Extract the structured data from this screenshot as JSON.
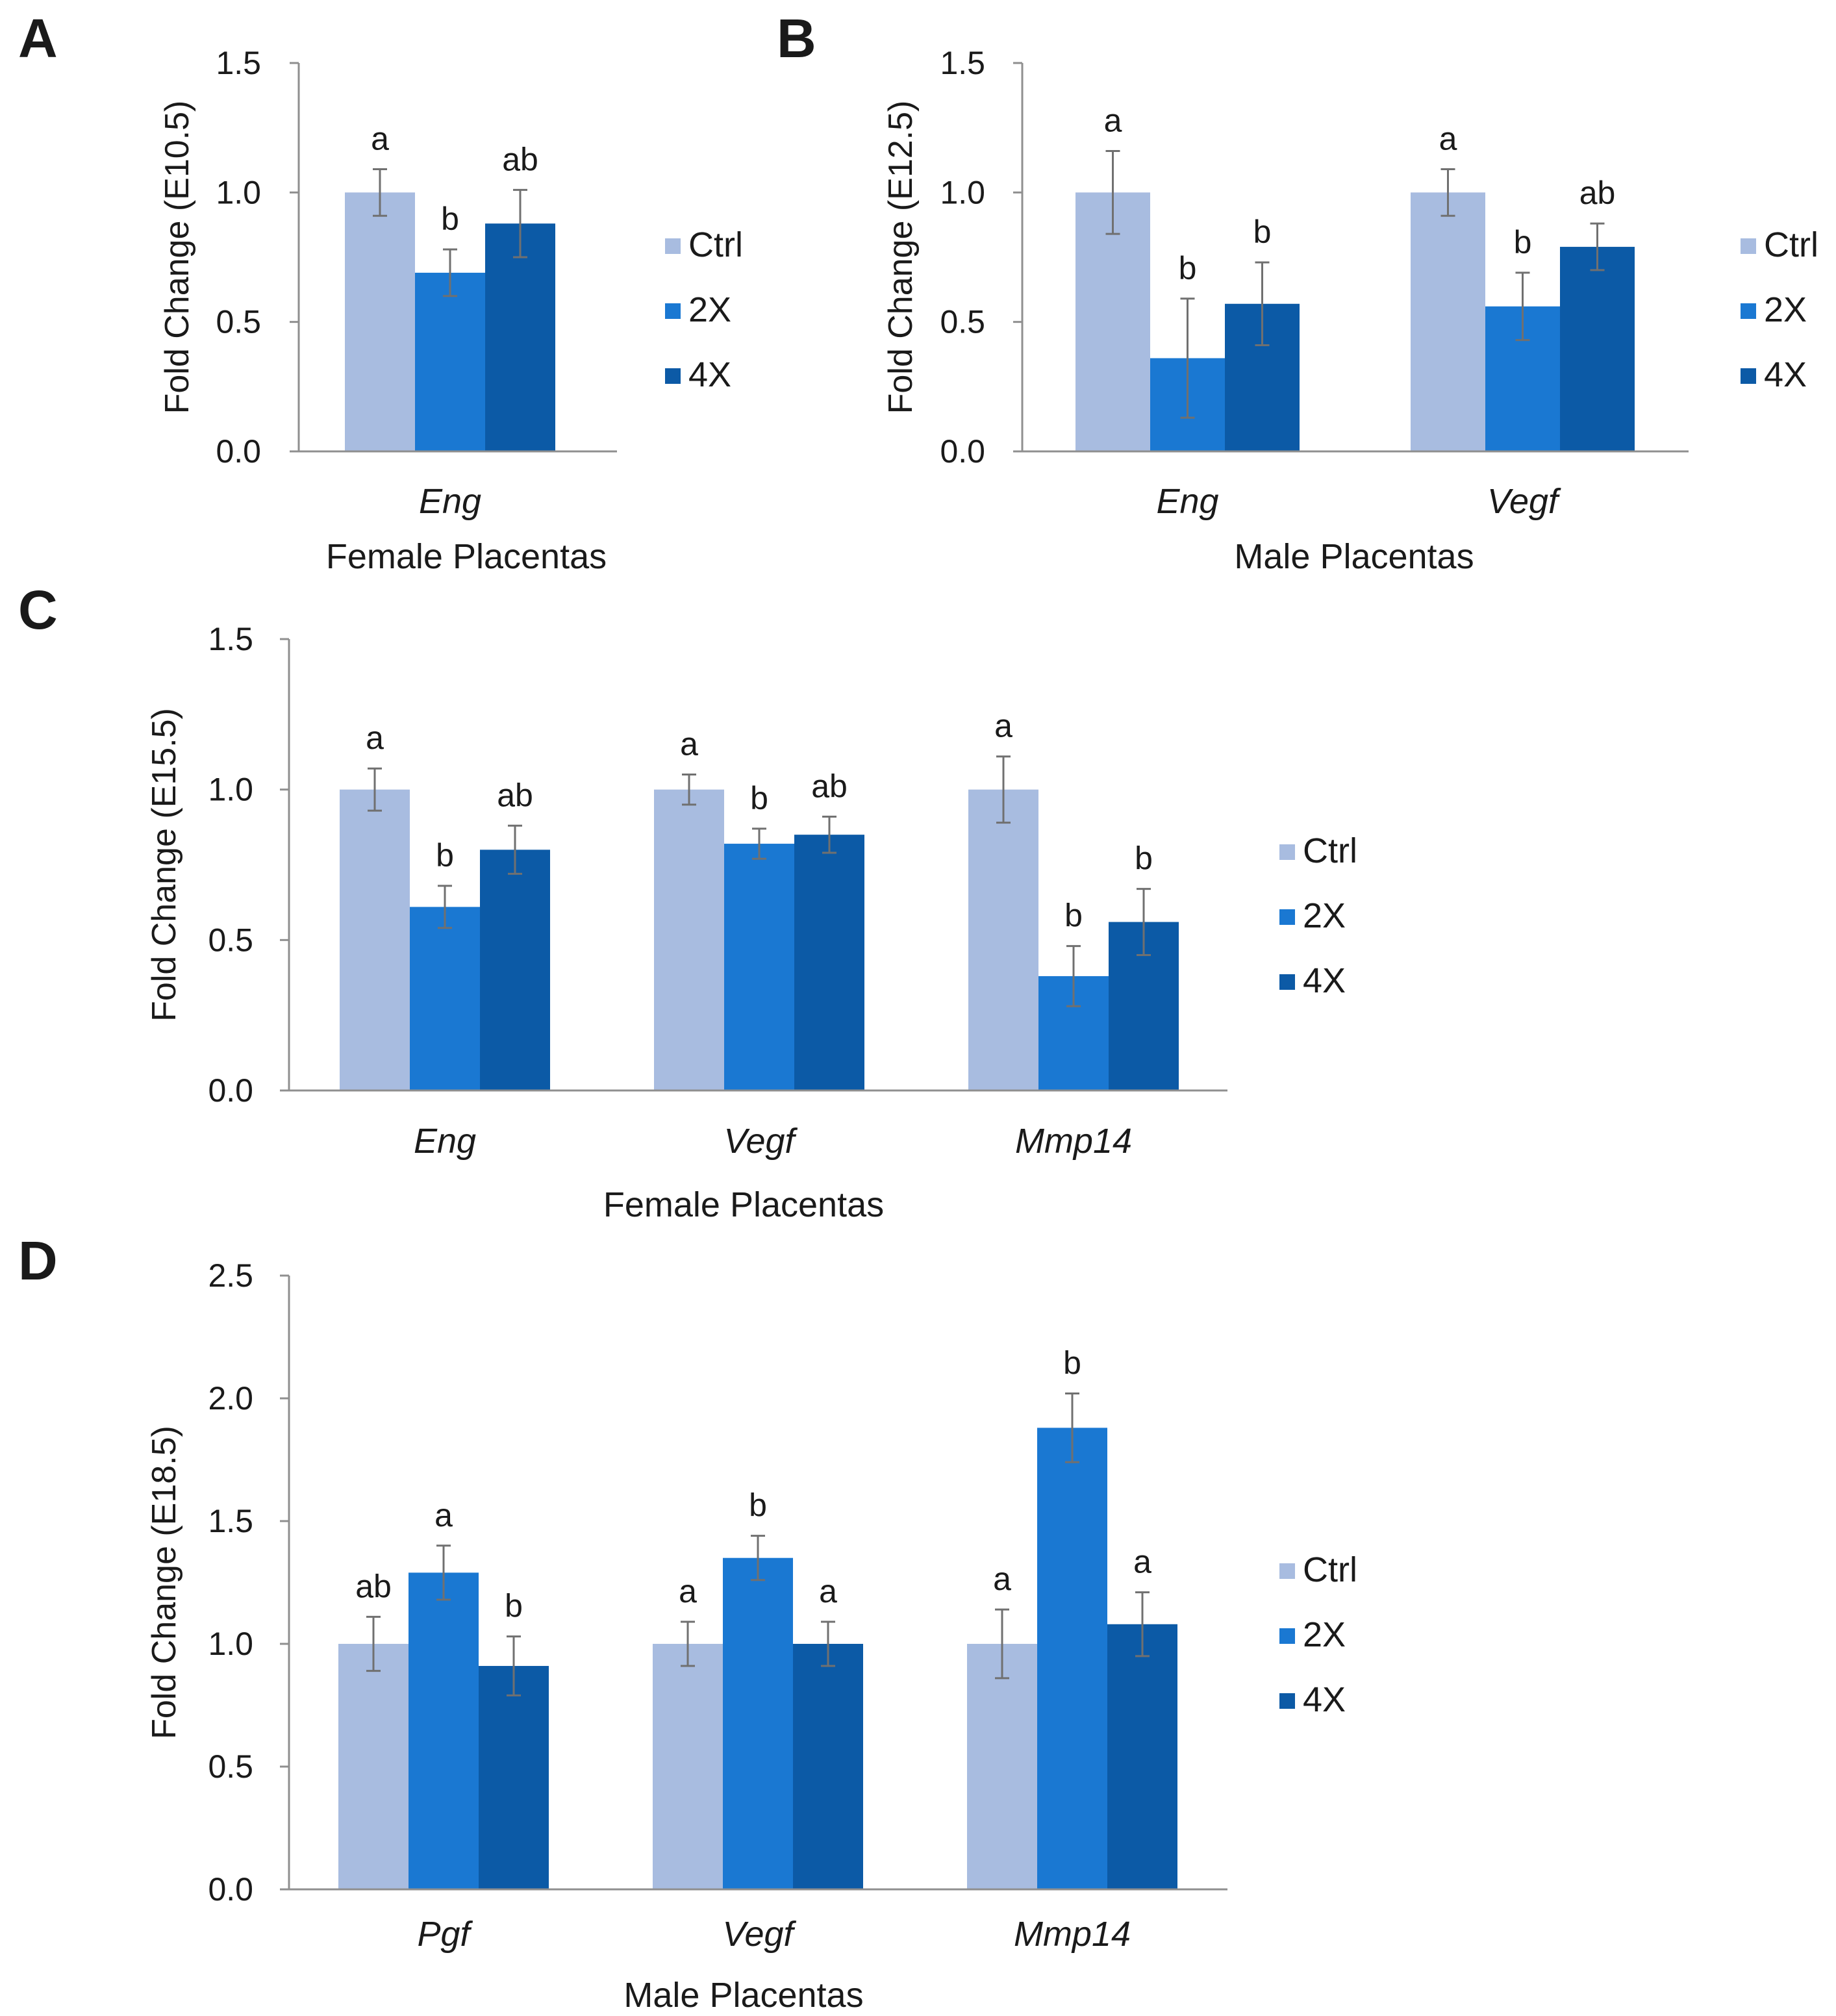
{
  "colors": {
    "Ctrl": "#a8bce0",
    "2X": "#1a78d2",
    "4X": "#0c5aa6",
    "axis": "#8f8f8f",
    "error": "#707070"
  },
  "chart_data": [
    {
      "panel": "A",
      "type": "bar",
      "title": "",
      "ylabel": "Fold Change (E10.5)",
      "xlabel": "Female Placentas",
      "ylim": [
        0,
        1.5
      ],
      "yticks": [
        "0.0",
        "0.5",
        "1.0",
        "1.5"
      ],
      "categories": [
        "Eng"
      ],
      "series": [
        {
          "name": "Ctrl",
          "values": [
            1.0
          ],
          "errors": [
            0.09
          ],
          "labels": [
            "a"
          ]
        },
        {
          "name": "2X",
          "values": [
            0.69
          ],
          "errors": [
            0.09
          ],
          "labels": [
            "b"
          ]
        },
        {
          "name": "4X",
          "values": [
            0.88
          ],
          "errors": [
            0.13
          ],
          "labels": [
            "ab"
          ]
        }
      ],
      "legend": [
        "Ctrl",
        "2X",
        "4X"
      ]
    },
    {
      "panel": "B",
      "type": "bar",
      "title": "",
      "ylabel": "Fold Change (E12.5)",
      "xlabel": "Male Placentas",
      "ylim": [
        0,
        1.5
      ],
      "yticks": [
        "0.0",
        "0.5",
        "1.0",
        "1.5"
      ],
      "categories": [
        "Eng",
        "Vegf"
      ],
      "series": [
        {
          "name": "Ctrl",
          "values": [
            1.0,
            1.0
          ],
          "errors": [
            0.16,
            0.09
          ],
          "labels": [
            "a",
            "a"
          ]
        },
        {
          "name": "2X",
          "values": [
            0.36,
            0.56
          ],
          "errors": [
            0.23,
            0.13
          ],
          "labels": [
            "b",
            "b"
          ]
        },
        {
          "name": "4X",
          "values": [
            0.57,
            0.79
          ],
          "errors": [
            0.16,
            0.09
          ],
          "labels": [
            "b",
            "ab"
          ]
        }
      ],
      "legend": [
        "Ctrl",
        "2X",
        "4X"
      ]
    },
    {
      "panel": "C",
      "type": "bar",
      "title": "",
      "ylabel": "Fold Change (E15.5)",
      "xlabel": "Female Placentas",
      "ylim": [
        0,
        1.5
      ],
      "yticks": [
        "0.0",
        "0.5",
        "1.0",
        "1.5"
      ],
      "categories": [
        "Eng",
        "Vegf",
        "Mmp14"
      ],
      "series": [
        {
          "name": "Ctrl",
          "values": [
            1.0,
            1.0,
            1.0
          ],
          "errors": [
            0.07,
            0.05,
            0.11
          ],
          "labels": [
            "a",
            "a",
            "a"
          ]
        },
        {
          "name": "2X",
          "values": [
            0.61,
            0.82,
            0.38
          ],
          "errors": [
            0.07,
            0.05,
            0.1
          ],
          "labels": [
            "b",
            "b",
            "b"
          ]
        },
        {
          "name": "4X",
          "values": [
            0.8,
            0.85,
            0.56
          ],
          "errors": [
            0.08,
            0.06,
            0.11
          ],
          "labels": [
            "ab",
            "ab",
            "b"
          ]
        }
      ],
      "legend": [
        "Ctrl",
        "2X",
        "4X"
      ]
    },
    {
      "panel": "D",
      "type": "bar",
      "title": "",
      "ylabel": "Fold Change (E18.5)",
      "xlabel": "Male Placentas",
      "ylim": [
        0,
        2.5
      ],
      "yticks": [
        "0.0",
        "0.5",
        "1.0",
        "1.5",
        "2.0",
        "2.5"
      ],
      "categories": [
        "Pgf",
        "Vegf",
        "Mmp14"
      ],
      "series": [
        {
          "name": "Ctrl",
          "values": [
            1.0,
            1.0,
            1.0
          ],
          "errors": [
            0.11,
            0.09,
            0.14
          ],
          "labels": [
            "ab",
            "a",
            "a"
          ]
        },
        {
          "name": "2X",
          "values": [
            1.29,
            1.35,
            1.88
          ],
          "errors": [
            0.11,
            0.09,
            0.14
          ],
          "labels": [
            "a",
            "b",
            "b"
          ]
        },
        {
          "name": "4X",
          "values": [
            0.91,
            1.0,
            1.08
          ],
          "errors": [
            0.12,
            0.09,
            0.13
          ],
          "labels": [
            "b",
            "a",
            "a"
          ]
        }
      ],
      "legend": [
        "Ctrl",
        "2X",
        "4X"
      ]
    }
  ]
}
